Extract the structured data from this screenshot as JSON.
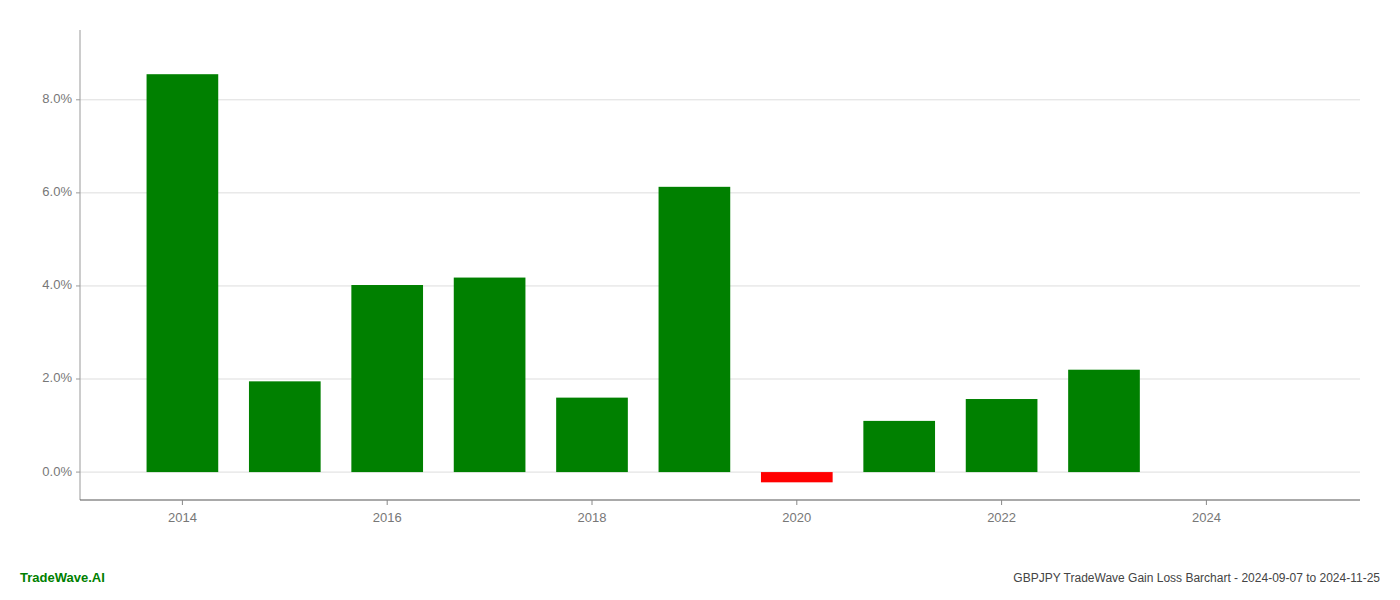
{
  "chart_data": {
    "type": "bar",
    "title": "GBPJPY TradeWave Gain Loss Barchart - 2024-09-07 to 2024-11-25",
    "annotations": [
      "TradeWave.AI"
    ],
    "x": [
      2014,
      2015,
      2016,
      2017,
      2018,
      2019,
      2020,
      2021,
      2022,
      2023
    ],
    "values": [
      8.55,
      1.95,
      4.02,
      4.18,
      1.6,
      6.13,
      -0.22,
      1.1,
      1.57,
      2.2
    ],
    "colors": [
      "#008000",
      "#008000",
      "#008000",
      "#008000",
      "#008000",
      "#008000",
      "#ff0000",
      "#008000",
      "#008000",
      "#008000"
    ],
    "xlim": [
      2013.0,
      2025.5
    ],
    "ylim": [
      -0.6,
      9.5
    ],
    "xticks": [
      2014,
      2016,
      2018,
      2020,
      2022,
      2024
    ],
    "yticks": [
      {
        "value": 0.0,
        "label": "0.0%"
      },
      {
        "value": 2.0,
        "label": "2.0%"
      },
      {
        "value": 4.0,
        "label": "4.0%"
      },
      {
        "value": 6.0,
        "label": "6.0%"
      },
      {
        "value": 8.0,
        "label": "8.0%"
      }
    ],
    "grid": true
  }
}
